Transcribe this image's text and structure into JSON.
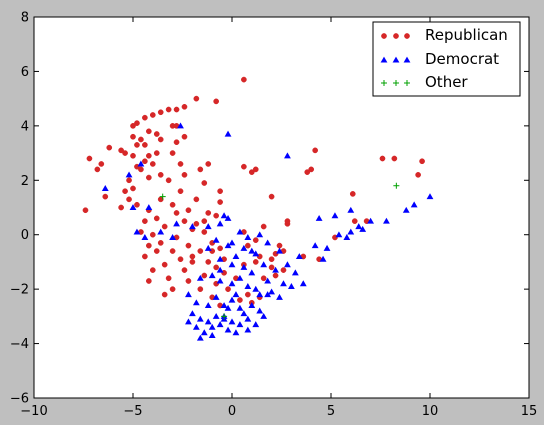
{
  "colors": {
    "figure_background": "#bfbfbf",
    "axes_background": "#ffffff",
    "republican": "#d62728",
    "democrat": "#0000ff",
    "other": "#00a000"
  },
  "chart_data": {
    "type": "scatter",
    "title": "",
    "xlabel": "",
    "ylabel": "",
    "xlim": [
      -10,
      15
    ],
    "ylim": [
      -6,
      8
    ],
    "xticks": [
      -10,
      -5,
      0,
      5,
      10,
      15
    ],
    "yticks": [
      -6,
      -4,
      -2,
      0,
      2,
      4,
      6,
      8
    ],
    "grid": false,
    "legend_position": "top-right",
    "series": [
      {
        "name": "Republican",
        "marker": "circle",
        "color": "#d62728",
        "points": [
          [
            0.6,
            5.7
          ],
          [
            -1.8,
            5.0
          ],
          [
            -0.8,
            4.9
          ],
          [
            -2.4,
            4.7
          ],
          [
            -2.8,
            4.6
          ],
          [
            -3.2,
            4.6
          ],
          [
            -3.6,
            4.5
          ],
          [
            -4.0,
            4.4
          ],
          [
            -4.4,
            4.3
          ],
          [
            -4.8,
            4.1
          ],
          [
            -5.0,
            4.0
          ],
          [
            -3.0,
            4.0
          ],
          [
            -4.2,
            3.8
          ],
          [
            -3.8,
            3.7
          ],
          [
            -5.0,
            3.6
          ],
          [
            -4.6,
            3.5
          ],
          [
            -3.6,
            3.5
          ],
          [
            -2.4,
            3.6
          ],
          [
            -4.8,
            3.3
          ],
          [
            -4.4,
            3.3
          ],
          [
            -2.8,
            3.4
          ],
          [
            -5.4,
            3.0
          ],
          [
            -5.0,
            2.9
          ],
          [
            -4.2,
            2.9
          ],
          [
            -3.0,
            3.0
          ],
          [
            -6.2,
            3.2
          ],
          [
            -5.6,
            3.1
          ],
          [
            -3.8,
            3.0
          ],
          [
            -4.4,
            2.7
          ],
          [
            -4.0,
            2.6
          ],
          [
            -4.8,
            2.5
          ],
          [
            -2.6,
            2.6
          ],
          [
            -1.2,
            2.6
          ],
          [
            -7.2,
            2.8
          ],
          [
            -6.6,
            2.6
          ],
          [
            -6.8,
            2.4
          ],
          [
            -4.6,
            2.4
          ],
          [
            -4.2,
            2.1
          ],
          [
            -3.6,
            2.2
          ],
          [
            -2.4,
            2.2
          ],
          [
            -1.6,
            2.4
          ],
          [
            0.6,
            2.5
          ],
          [
            1.2,
            2.4
          ],
          [
            -5.2,
            2.0
          ],
          [
            -3.2,
            2.0
          ],
          [
            -1.4,
            1.9
          ],
          [
            -0.6,
            1.6
          ],
          [
            -5.0,
            1.7
          ],
          [
            -5.4,
            1.6
          ],
          [
            -3.6,
            1.3
          ],
          [
            -2.6,
            1.6
          ],
          [
            -1.8,
            1.3
          ],
          [
            -5.2,
            1.3
          ],
          [
            -5.6,
            1.0
          ],
          [
            -4.2,
            0.9
          ],
          [
            -3.0,
            1.1
          ],
          [
            -2.2,
            0.9
          ],
          [
            -4.8,
            1.1
          ],
          [
            -2.8,
            0.8
          ],
          [
            -1.2,
            0.8
          ],
          [
            -0.8,
            0.7
          ],
          [
            -3.8,
            0.6
          ],
          [
            -4.4,
            0.5
          ],
          [
            -2.4,
            0.5
          ],
          [
            -1.8,
            0.4
          ],
          [
            -7.4,
            0.9
          ],
          [
            -6.4,
            1.4
          ],
          [
            -3.4,
            0.3
          ],
          [
            -4.6,
            0.1
          ],
          [
            -4.0,
            0.0
          ],
          [
            -2.0,
            0.2
          ],
          [
            -1.4,
            0.1
          ],
          [
            -2.8,
            -0.1
          ],
          [
            -3.6,
            -0.3
          ],
          [
            -4.2,
            -0.4
          ],
          [
            -2.2,
            -0.4
          ],
          [
            -1.0,
            -0.3
          ],
          [
            -3.8,
            -0.6
          ],
          [
            -3.0,
            -0.6
          ],
          [
            -1.6,
            -0.6
          ],
          [
            -0.6,
            -0.5
          ],
          [
            -4.4,
            -0.8
          ],
          [
            -2.6,
            -0.9
          ],
          [
            -2.0,
            -0.8
          ],
          [
            -1.2,
            -1.0
          ],
          [
            -0.8,
            -1.2
          ],
          [
            -3.4,
            -1.1
          ],
          [
            -4.0,
            -1.3
          ],
          [
            -2.4,
            -1.3
          ],
          [
            -1.4,
            -1.5
          ],
          [
            -0.4,
            -1.4
          ],
          [
            -4.2,
            -1.7
          ],
          [
            -3.2,
            -1.6
          ],
          [
            -2.2,
            -1.7
          ],
          [
            -0.8,
            -1.8
          ],
          [
            -1.6,
            -2.0
          ],
          [
            -3.0,
            -2.0
          ],
          [
            -3.4,
            -2.2
          ],
          [
            -0.2,
            -2.0
          ],
          [
            -1.0,
            -2.3
          ],
          [
            -0.6,
            -2.6
          ],
          [
            0.4,
            -2.4
          ],
          [
            0.8,
            -2.2
          ],
          [
            1.0,
            -2.5
          ],
          [
            1.4,
            -2.3
          ],
          [
            0.2,
            -1.6
          ],
          [
            1.6,
            -1.6
          ],
          [
            2.2,
            -1.5
          ],
          [
            2.6,
            -1.3
          ],
          [
            2.0,
            -1.2
          ],
          [
            1.2,
            -1.0
          ],
          [
            0.6,
            -1.1
          ],
          [
            1.4,
            -0.8
          ],
          [
            2.0,
            -0.9
          ],
          [
            2.6,
            -0.6
          ],
          [
            0.8,
            -0.4
          ],
          [
            1.2,
            -0.2
          ],
          [
            2.4,
            -0.4
          ],
          [
            3.6,
            -0.8
          ],
          [
            4.4,
            -0.9
          ],
          [
            2.2,
            -0.7
          ],
          [
            0.6,
            0.1
          ],
          [
            1.6,
            0.3
          ],
          [
            2.8,
            0.4
          ],
          [
            2.8,
            0.5
          ],
          [
            5.2,
            -0.1
          ],
          [
            6.2,
            0.5
          ],
          [
            6.8,
            0.5
          ],
          [
            6.1,
            1.5
          ],
          [
            2.0,
            1.4
          ],
          [
            1.0,
            2.3
          ],
          [
            3.8,
            2.3
          ],
          [
            4.0,
            2.4
          ],
          [
            4.2,
            3.1
          ],
          [
            7.6,
            2.8
          ],
          [
            8.2,
            2.8
          ],
          [
            9.6,
            2.7
          ],
          [
            9.4,
            2.2
          ],
          [
            -2.8,
            4.0
          ],
          [
            -1.4,
            0.5
          ],
          [
            -0.6,
            1.2
          ],
          [
            -1.0,
            -0.6
          ],
          [
            -2.0,
            -1.0
          ],
          [
            -0.4,
            -0.9
          ]
        ]
      },
      {
        "name": "Democrat",
        "marker": "triangle",
        "color": "#0000ff",
        "points": [
          [
            -2.6,
            4.0
          ],
          [
            -0.2,
            3.7
          ],
          [
            2.8,
            2.9
          ],
          [
            -4.6,
            2.6
          ],
          [
            -5.2,
            2.2
          ],
          [
            -6.4,
            1.7
          ],
          [
            -4.2,
            1.0
          ],
          [
            -5.0,
            1.0
          ],
          [
            -4.8,
            0.1
          ],
          [
            -3.6,
            0.1
          ],
          [
            -2.8,
            0.4
          ],
          [
            -2.0,
            0.3
          ],
          [
            -1.2,
            0.3
          ],
          [
            -0.6,
            0.4
          ],
          [
            -0.4,
            0.7
          ],
          [
            -0.2,
            0.6
          ],
          [
            0.4,
            0.1
          ],
          [
            0.8,
            -0.1
          ],
          [
            1.4,
            0.0
          ],
          [
            -0.8,
            -0.2
          ],
          [
            -0.2,
            -0.4
          ],
          [
            0.6,
            -0.5
          ],
          [
            1.0,
            -0.6
          ],
          [
            1.8,
            -0.3
          ],
          [
            2.4,
            -0.6
          ],
          [
            -1.2,
            -0.5
          ],
          [
            -0.6,
            -0.9
          ],
          [
            0.0,
            -1.1
          ],
          [
            0.6,
            -1.2
          ],
          [
            1.0,
            -1.4
          ],
          [
            1.6,
            -1.1
          ],
          [
            2.2,
            -1.3
          ],
          [
            2.8,
            -1.1
          ],
          [
            3.2,
            -1.4
          ],
          [
            3.6,
            -1.8
          ],
          [
            3.0,
            -1.9
          ],
          [
            -1.6,
            -1.6
          ],
          [
            -1.0,
            -1.5
          ],
          [
            -0.6,
            -1.7
          ],
          [
            0.0,
            -1.8
          ],
          [
            0.4,
            -1.6
          ],
          [
            0.8,
            -1.9
          ],
          [
            1.2,
            -2.0
          ],
          [
            1.8,
            -2.2
          ],
          [
            2.4,
            -2.3
          ],
          [
            -2.2,
            -2.2
          ],
          [
            -1.8,
            -2.5
          ],
          [
            -1.2,
            -2.6
          ],
          [
            -0.8,
            -2.3
          ],
          [
            -0.4,
            -2.6
          ],
          [
            0.0,
            -2.4
          ],
          [
            0.4,
            -2.7
          ],
          [
            0.6,
            -2.9
          ],
          [
            1.0,
            -2.6
          ],
          [
            1.4,
            -2.8
          ],
          [
            1.6,
            -3.0
          ],
          [
            -2.0,
            -2.9
          ],
          [
            -1.6,
            -3.1
          ],
          [
            -1.2,
            -3.2
          ],
          [
            -0.8,
            -3.0
          ],
          [
            -0.4,
            -3.1
          ],
          [
            0.0,
            -3.2
          ],
          [
            0.4,
            -3.3
          ],
          [
            0.8,
            -3.1
          ],
          [
            1.2,
            -3.3
          ],
          [
            -1.8,
            -3.4
          ],
          [
            -1.4,
            -3.6
          ],
          [
            -1.0,
            -3.4
          ],
          [
            -0.6,
            -3.3
          ],
          [
            -0.2,
            -3.5
          ],
          [
            0.2,
            -3.6
          ],
          [
            -2.2,
            -3.2
          ],
          [
            -1.6,
            -3.8
          ],
          [
            -1.0,
            -3.7
          ],
          [
            -0.4,
            -3.0
          ],
          [
            0.8,
            -3.5
          ],
          [
            3.4,
            -0.8
          ],
          [
            4.2,
            -0.4
          ],
          [
            4.6,
            -0.9
          ],
          [
            4.8,
            -0.5
          ],
          [
            5.4,
            0.0
          ],
          [
            5.8,
            -0.1
          ],
          [
            6.0,
            0.1
          ],
          [
            6.4,
            0.3
          ],
          [
            7.0,
            0.5
          ],
          [
            7.8,
            0.5
          ],
          [
            4.4,
            0.6
          ],
          [
            5.2,
            0.7
          ],
          [
            6.0,
            0.9
          ],
          [
            6.6,
            0.2
          ],
          [
            8.8,
            0.9
          ],
          [
            9.2,
            1.1
          ],
          [
            10.0,
            1.4
          ],
          [
            -4.4,
            -0.1
          ],
          [
            -3.0,
            -0.1
          ],
          [
            1.4,
            -2.2
          ],
          [
            2.0,
            -2.1
          ],
          [
            0.2,
            -2.2
          ],
          [
            -0.2,
            -2.7
          ],
          [
            1.8,
            -1.7
          ],
          [
            2.6,
            -1.8
          ],
          [
            -0.6,
            -1.3
          ],
          [
            0.2,
            -0.8
          ],
          [
            1.2,
            -0.7
          ],
          [
            0.0,
            -0.3
          ]
        ]
      },
      {
        "name": "Other",
        "marker": "plus",
        "color": "#00a000",
        "points": [
          [
            -3.5,
            1.4
          ],
          [
            8.3,
            1.8
          ],
          [
            -0.4,
            -3.0
          ]
        ]
      }
    ]
  }
}
